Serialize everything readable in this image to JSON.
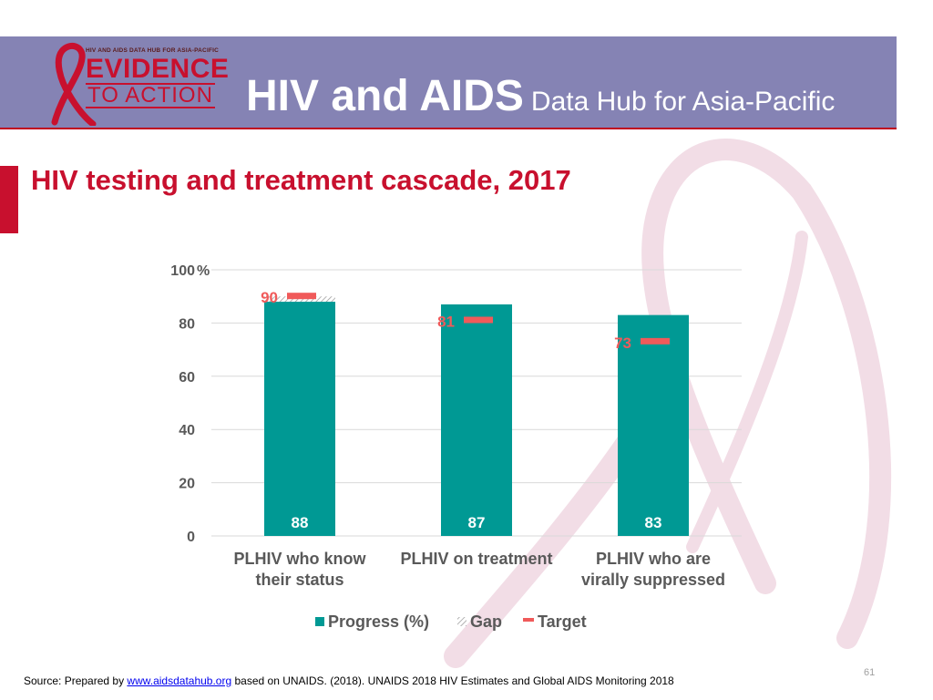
{
  "header": {
    "logo_small": "HIV AND AIDS DATA HUB FOR ASIA-PACIFIC",
    "logo_evidence": "EVIDENCE",
    "logo_action": "TO ACTION",
    "title_main": "HIV and AIDS",
    "title_sub": "Data Hub for Asia-Pacific"
  },
  "slide_title": "HIV testing and treatment cascade, 2017",
  "colors": {
    "header_bg": "#8583b4",
    "accent_red": "#c8102e",
    "progress": "#009994",
    "target": "#f05a5a",
    "ribbon": "#f2dde6"
  },
  "chart_data": {
    "type": "bar",
    "categories": [
      [
        "PLHIV who know",
        "their status"
      ],
      [
        "PLHIV on treatment"
      ],
      [
        "PLHIV who are",
        "virally suppressed"
      ]
    ],
    "series": [
      {
        "name": "Progress (%)",
        "values": [
          88,
          87,
          83
        ]
      },
      {
        "name": "Gap",
        "values": [
          2,
          0,
          0
        ]
      },
      {
        "name": "Target",
        "values": [
          90,
          81,
          73
        ]
      }
    ],
    "y_ticks": [
      "0",
      "20",
      "40",
      "60",
      "80",
      "100"
    ],
    "y_unit": "%",
    "ylim": [
      0,
      100
    ],
    "grid": true,
    "legend": "bottom"
  },
  "footer": {
    "prefix": "Source: Prepared by ",
    "link": "www.aidsdatahub.org",
    "suffix": "  based on UNAIDS. (2018). UNAIDS 2018 HIV Estimates and Global AIDS Monitoring 2018"
  },
  "page_number": "61"
}
